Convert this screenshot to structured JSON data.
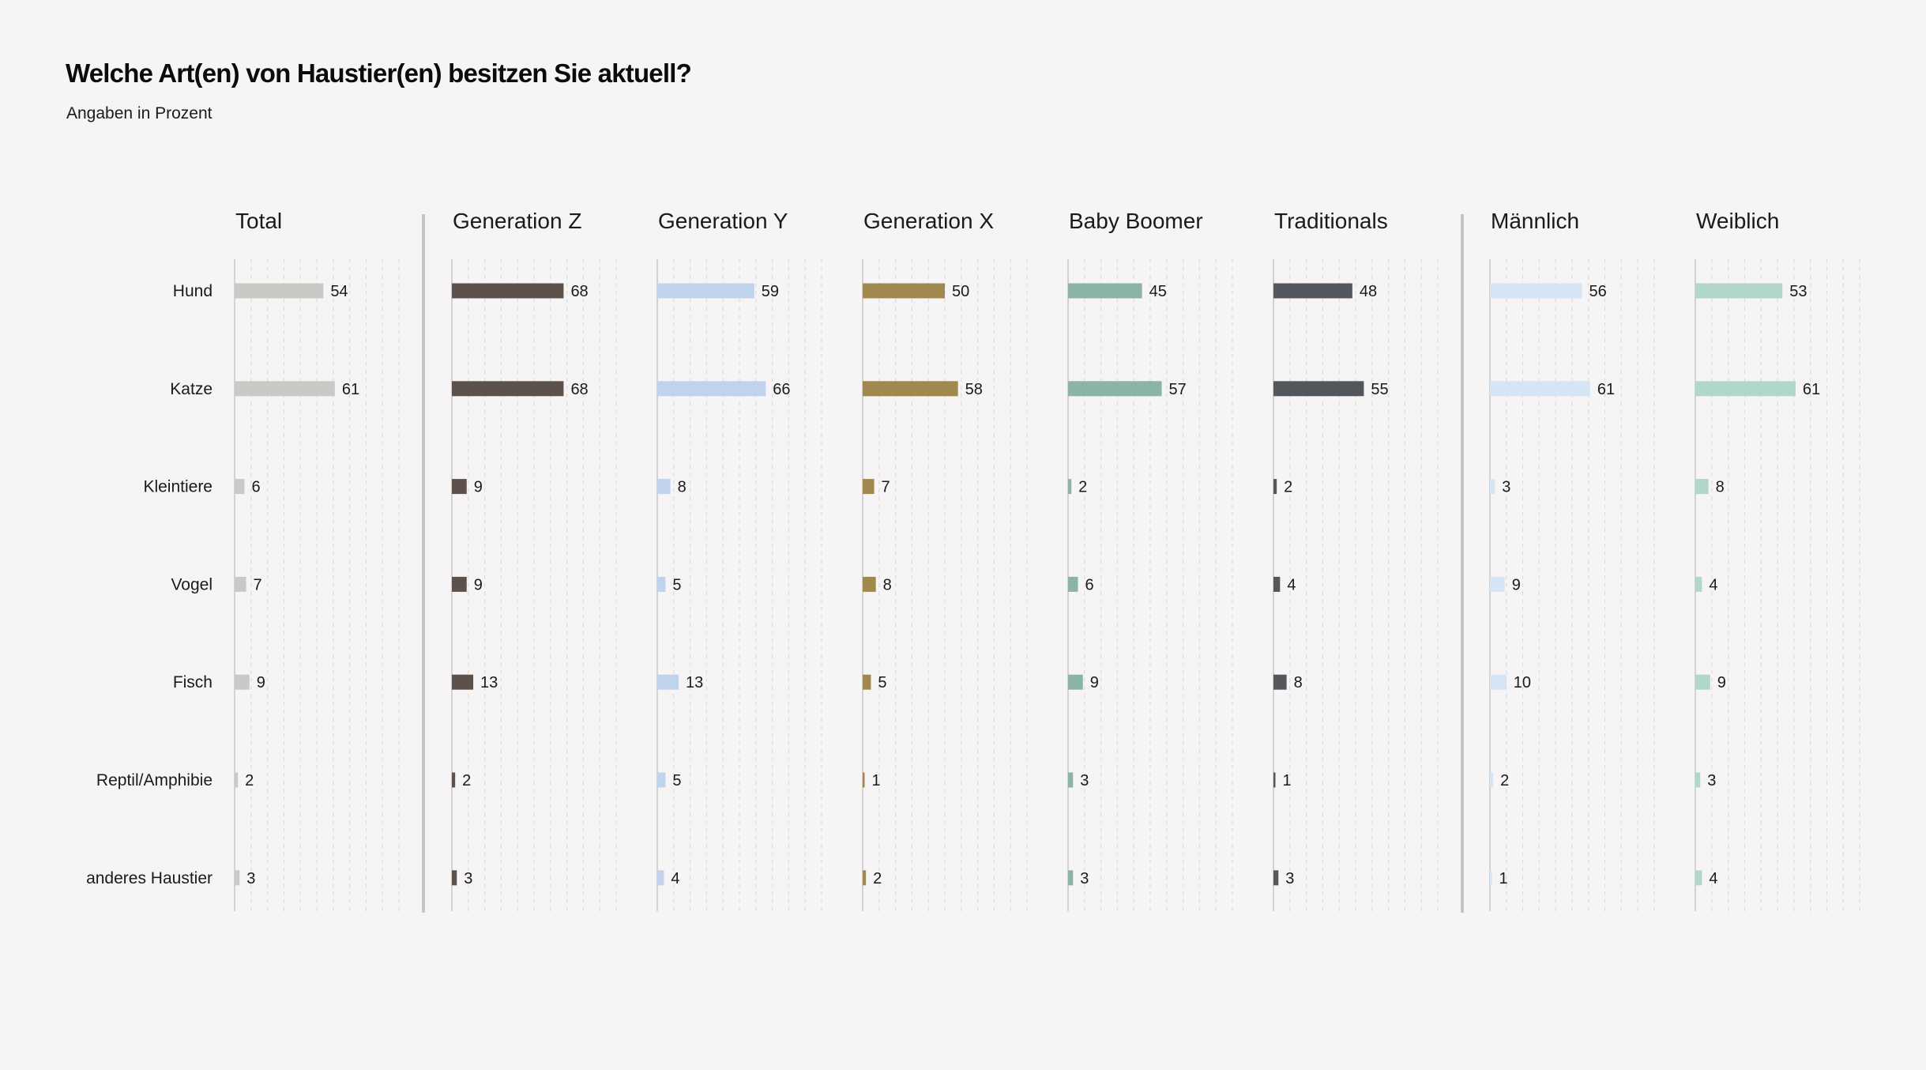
{
  "title": "Welche Art(en) von Haustier(en) besitzen Sie aktuell?",
  "subtitle": "Angaben in Prozent",
  "chart_data": {
    "type": "bar",
    "orientation": "horizontal",
    "unit": "Prozent",
    "categories": [
      "Hund",
      "Katze",
      "Kleintiere",
      "Vogel",
      "Fisch",
      "Reptil/Amphibie",
      "anderes Haustier"
    ],
    "xlim": [
      0,
      100
    ],
    "grid": true,
    "panels": [
      {
        "name": "Total",
        "color": "#c9cac6",
        "values": [
          54,
          61,
          6,
          7,
          9,
          2,
          3
        ]
      },
      {
        "name": "Generation Z",
        "color": "#5c514b",
        "values": [
          68,
          68,
          9,
          9,
          13,
          2,
          3
        ]
      },
      {
        "name": "Generation Y",
        "color": "#c0d3ea",
        "values": [
          59,
          66,
          8,
          5,
          13,
          5,
          4
        ]
      },
      {
        "name": "Generation X",
        "color": "#a0884e",
        "values": [
          50,
          58,
          7,
          8,
          5,
          1,
          2
        ]
      },
      {
        "name": "Baby Boomer",
        "color": "#8bb3a8",
        "values": [
          45,
          57,
          2,
          6,
          9,
          3,
          3
        ]
      },
      {
        "name": "Traditionals",
        "color": "#53575c",
        "values": [
          48,
          55,
          2,
          4,
          8,
          1,
          3
        ]
      },
      {
        "name": "Männlich",
        "color": "#d5e5f4",
        "values": [
          56,
          61,
          3,
          9,
          10,
          2,
          1
        ]
      },
      {
        "name": "Weiblich",
        "color": "#b1d6cc",
        "values": [
          53,
          61,
          8,
          4,
          9,
          3,
          4
        ]
      }
    ],
    "group_separators_after": [
      "Total",
      "Traditionals"
    ]
  }
}
